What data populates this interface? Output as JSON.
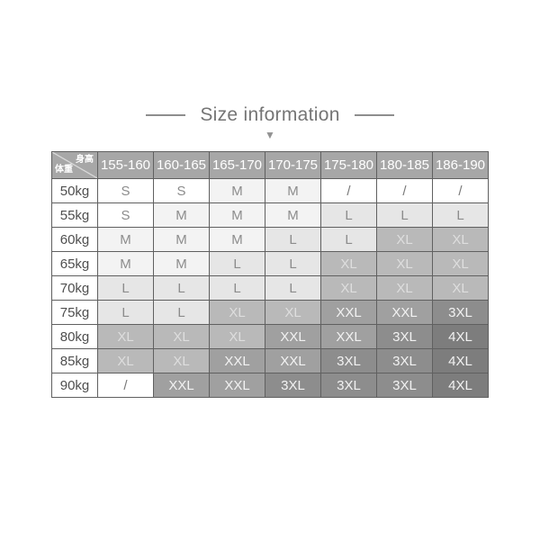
{
  "title": {
    "text": "Size information",
    "arrow_icon": "▼"
  },
  "chart_data": {
    "type": "table",
    "title": "Size information",
    "corner_labels": {
      "top_right": "身高",
      "bottom_left": "体重"
    },
    "columns": [
      "155-160",
      "160-165",
      "165-170",
      "170-175",
      "175-180",
      "180-185",
      "186-190"
    ],
    "rows": [
      {
        "weight": "50kg",
        "sizes": [
          "S",
          "S",
          "M",
          "M",
          "/",
          "/",
          "/"
        ]
      },
      {
        "weight": "55kg",
        "sizes": [
          "S",
          "M",
          "M",
          "M",
          "L",
          "L",
          "L"
        ]
      },
      {
        "weight": "60kg",
        "sizes": [
          "M",
          "M",
          "M",
          "L",
          "L",
          "XL",
          "XL"
        ]
      },
      {
        "weight": "65kg",
        "sizes": [
          "M",
          "M",
          "L",
          "L",
          "XL",
          "XL",
          "XL"
        ]
      },
      {
        "weight": "70kg",
        "sizes": [
          "L",
          "L",
          "L",
          "L",
          "XL",
          "XL",
          "XL"
        ]
      },
      {
        "weight": "75kg",
        "sizes": [
          "L",
          "L",
          "XL",
          "XL",
          "XXL",
          "XXL",
          "3XL"
        ]
      },
      {
        "weight": "80kg",
        "sizes": [
          "XL",
          "XL",
          "XL",
          "XXL",
          "XXL",
          "3XL",
          "4XL"
        ]
      },
      {
        "weight": "85kg",
        "sizes": [
          "XL",
          "XL",
          "XXL",
          "XXL",
          "3XL",
          "3XL",
          "4XL"
        ]
      },
      {
        "weight": "90kg",
        "sizes": [
          "/",
          "XXL",
          "XXL",
          "3XL",
          "3XL",
          "3XL",
          "4XL"
        ]
      }
    ]
  },
  "colors": {
    "title_text": "#757575",
    "header_bg": "#a7a7a7",
    "header_text": "#ffffff",
    "border": "#606060",
    "weight_text": "#4f4f4f",
    "diagonal_line": "#d9d9d9",
    "size_bg": {
      "S": "#ffffff",
      "M": "#f3f3f3",
      "L": "#e6e6e6",
      "XL": "#b9b9b9",
      "XXL": "#a0a0a0",
      "3XL": "#8d8d8d",
      "4XL": "#7d7d7d",
      "/": "#ffffff"
    },
    "size_text": {
      "S": "#8c8c8c",
      "M": "#8c8c8c",
      "L": "#8c8c8c",
      "XL": "#dedede",
      "XXL": "#f2f2f2",
      "3XL": "#f2f2f2",
      "4XL": "#f2f2f2",
      "/": "#787878"
    }
  }
}
